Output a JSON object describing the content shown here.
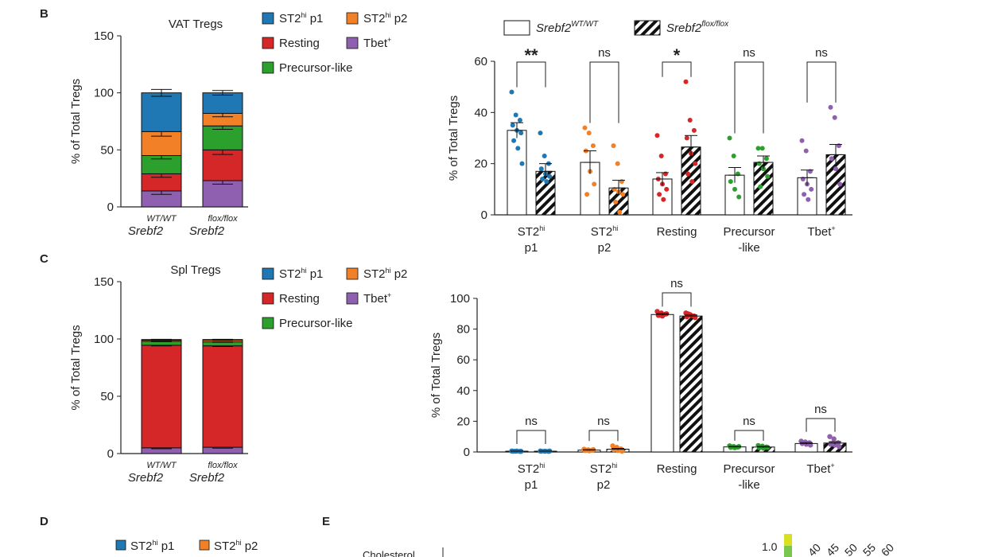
{
  "panels": {
    "B": "B",
    "C": "C",
    "D": "D",
    "E": "E"
  },
  "colors": {
    "ST2hi p1": "#1f77b4",
    "ST2hi p2": "#f28026",
    "Resting": "#d62728",
    "Tbet+": "#8f5fb0",
    "Precursor-like": "#2ca02c"
  },
  "legend_stack": [
    {
      "key": "ST2hi p1",
      "base": "ST2",
      "sup": "hi",
      "rest": " p1"
    },
    {
      "key": "ST2hi p2",
      "base": "ST2",
      "sup": "hi",
      "rest": " p2"
    },
    {
      "key": "Resting",
      "base": "Resting",
      "sup": "",
      "rest": ""
    },
    {
      "key": "Tbet+",
      "base": "Tbet",
      "sup": "+",
      "rest": ""
    },
    {
      "key": "Precursor-like",
      "base": "Precursor-like",
      "sup": "",
      "rest": ""
    }
  ],
  "legend_bar": [
    {
      "label": "Srebf2",
      "sup": "WT/WT",
      "pattern": "white"
    },
    {
      "label": "Srebf2",
      "sup": "flox/flox",
      "pattern": "hatch"
    }
  ],
  "cat_labels": [
    [
      "ST2|hi",
      "p1"
    ],
    [
      "ST2|hi",
      "p2"
    ],
    [
      "Resting",
      ""
    ],
    [
      "Precursor",
      "-like"
    ],
    [
      "Tbet|+",
      ""
    ]
  ],
  "stack_xlabels": [
    {
      "sup": "WT/WT",
      "gene": "Srebf2"
    },
    {
      "sup": "flox/flox",
      "gene": "Srebf2"
    }
  ],
  "chart_data": [
    {
      "id": "B-stacked",
      "type": "bar",
      "title": "VAT Tregs",
      "ylabel": "% of Total Tregs",
      "ylim": [
        0,
        150
      ],
      "yticks": [
        0,
        50,
        100,
        150
      ],
      "categories": [
        "WT/WT Srebf2",
        "flox/flox Srebf2"
      ],
      "stack_order": [
        "Tbet+",
        "Resting",
        "Precursor-like",
        "ST2hi p2",
        "ST2hi p1"
      ],
      "series": [
        {
          "name": "Tbet+",
          "values": [
            14,
            23
          ],
          "err": [
            3,
            3
          ]
        },
        {
          "name": "Resting",
          "values": [
            15,
            27
          ],
          "err": [
            3,
            4
          ]
        },
        {
          "name": "Precursor-like",
          "values": [
            16,
            21
          ],
          "err": [
            3,
            3
          ]
        },
        {
          "name": "ST2hi p2",
          "values": [
            21,
            11
          ],
          "err": [
            4,
            3
          ]
        },
        {
          "name": "ST2hi p1",
          "values": [
            34,
            18
          ],
          "err": [
            3,
            2
          ]
        }
      ]
    },
    {
      "id": "B-scatter",
      "type": "bar",
      "ylabel": "% of Total Tregs",
      "ylim": [
        0,
        60
      ],
      "yticks": [
        0,
        20,
        40,
        60
      ],
      "categories": [
        "ST2hi p1",
        "ST2hi p2",
        "Resting",
        "Precursor-like",
        "Tbet+"
      ],
      "significance": [
        "**",
        "ns",
        "*",
        "ns",
        "ns"
      ],
      "series": [
        {
          "name": "Srebf2 WT/WT",
          "means": [
            33,
            20.5,
            14,
            15.5,
            14.5
          ],
          "sem": [
            3,
            4.5,
            2.5,
            3,
            3
          ],
          "points": [
            [
              48,
              39,
              37,
              35,
              33,
              32,
              29,
              26,
              20
            ],
            [
              34,
              32,
              27,
              25,
              17,
              12,
              8
            ],
            [
              31,
              23,
              16,
              14,
              12,
              10,
              8,
              6
            ],
            [
              30,
              23,
              16,
              13,
              10,
              7
            ],
            [
              29,
              25,
              17,
              14,
              12,
              10,
              8,
              6
            ]
          ]
        },
        {
          "name": "Srebf2 flox/flox",
          "means": [
            17,
            10.5,
            26.5,
            20.5,
            23.5
          ],
          "sem": [
            3,
            3,
            4.5,
            2.5,
            4
          ],
          "points": [
            [
              32,
              23,
              20,
              18,
              16,
              15,
              14,
              13
            ],
            [
              27,
              20,
              13,
              10,
              9,
              8,
              5,
              1
            ],
            [
              52,
              37,
              33,
              30,
              24,
              20,
              16,
              13
            ],
            [
              26,
              26,
              22,
              20,
              18,
              15,
              11
            ],
            [
              42,
              38,
              27,
              22,
              18,
              12
            ]
          ]
        }
      ]
    },
    {
      "id": "C-stacked",
      "type": "bar",
      "title": "Spl Tregs",
      "ylabel": "% of Total Tregs",
      "ylim": [
        0,
        150
      ],
      "yticks": [
        0,
        50,
        100,
        150
      ],
      "categories": [
        "WT/WT Srebf2",
        "flox/flox Srebf2"
      ],
      "stack_order": [
        "Tbet+",
        "Resting",
        "Precursor-like",
        "ST2hi p2",
        "ST2hi p1"
      ],
      "series": [
        {
          "name": "Tbet+",
          "values": [
            5,
            5.5
          ],
          "err": [
            0.8,
            0.8
          ]
        },
        {
          "name": "Resting",
          "values": [
            89.5,
            88.5
          ],
          "err": [
            0.6,
            0.6
          ]
        },
        {
          "name": "Precursor-like",
          "values": [
            3.5,
            3.5
          ],
          "err": [
            0.4,
            0.4
          ]
        },
        {
          "name": "ST2hi p2",
          "values": [
            1,
            1.5
          ],
          "err": [
            0.3,
            0.3
          ]
        },
        {
          "name": "ST2hi p1",
          "values": [
            0.5,
            0.5
          ],
          "err": [
            0.2,
            0.2
          ]
        }
      ]
    },
    {
      "id": "C-scatter",
      "type": "bar",
      "ylabel": "% of Total Tregs",
      "ylim": [
        0,
        100
      ],
      "yticks": [
        0,
        20,
        40,
        60,
        80,
        100
      ],
      "categories": [
        "ST2hi p1",
        "ST2hi p2",
        "Resting",
        "Precursor-like",
        "Tbet+"
      ],
      "significance": [
        "ns",
        "ns",
        "ns",
        "ns",
        "ns"
      ],
      "series": [
        {
          "name": "Srebf2 WT/WT",
          "means": [
            0.5,
            1.2,
            89.5,
            3.3,
            5.5
          ],
          "sem": [
            0.1,
            0.3,
            0.6,
            0.3,
            0.6
          ],
          "points": [
            [
              0.6,
              0.5,
              0.4,
              0.5,
              0.6,
              0.4,
              0.5
            ],
            [
              1.8,
              1.4,
              1.2,
              1,
              0.8,
              1.5
            ],
            [
              91.5,
              90.5,
              89.8,
              89,
              88.5,
              90,
              89
            ],
            [
              4,
              3.5,
              3.2,
              3,
              2.8,
              3.5,
              3.3
            ],
            [
              7,
              6.5,
              6,
              5.5,
              5,
              4.5,
              6
            ]
          ]
        },
        {
          "name": "Srebf2 flox/flox",
          "means": [
            0.5,
            1.8,
            88.5,
            3.2,
            5.8
          ],
          "sem": [
            0.1,
            0.5,
            0.7,
            0.4,
            0.9
          ],
          "points": [
            [
              0.6,
              0.5,
              0.4,
              0.5,
              0.5,
              0.6
            ],
            [
              4,
              3,
              2,
              1.5,
              1,
              0.5,
              2.5
            ],
            [
              90.5,
              89.5,
              88.5,
              88,
              89,
              87.5,
              90
            ],
            [
              4.2,
              3.8,
              3.2,
              2.8,
              2.5,
              3
            ],
            [
              10,
              8.5,
              6,
              5,
              4.5,
              3.5,
              5.5
            ]
          ]
        }
      ]
    }
  ],
  "panel_D": {
    "legend": [
      {
        "key": "ST2hi p1",
        "base": "ST2",
        "sup": "hi",
        "rest": " p1"
      },
      {
        "key": "ST2hi p2",
        "base": "ST2",
        "sup": "hi",
        "rest": " p2"
      }
    ]
  },
  "panel_E": {
    "row_label": "Cholesterol",
    "colorbar_value": "1.0",
    "column_labels": [
      "40",
      "45",
      "50",
      "55",
      "60"
    ]
  }
}
